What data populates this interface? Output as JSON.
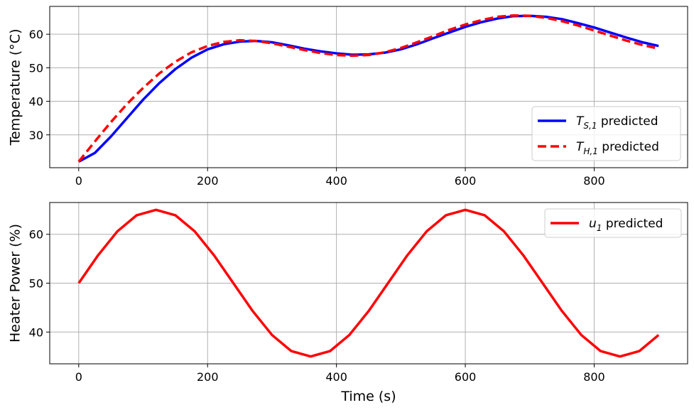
{
  "chart_data": [
    {
      "type": "line",
      "title": "",
      "xlabel": "",
      "ylabel": "Temperature (°C)",
      "xlim": [
        -45,
        945
      ],
      "ylim": [
        20.2,
        68.3
      ],
      "xticks": [
        0,
        200,
        400,
        600,
        800
      ],
      "xtick_labels": [
        "0",
        "200",
        "400",
        "600",
        "800"
      ],
      "yticks": [
        30,
        40,
        50,
        60
      ],
      "ytick_labels": [
        "30",
        "40",
        "50",
        "60"
      ],
      "grid": true,
      "legend_position": "lower right",
      "series": [
        {
          "name": "T_S,1 predicted",
          "legend_main": "T",
          "legend_sub": "S,1",
          "legend_suffix": " predicted",
          "color": "#0000ff",
          "dash": "solid",
          "x": [
            0,
            25,
            50,
            75,
            100,
            125,
            150,
            175,
            200,
            225,
            250,
            275,
            300,
            325,
            350,
            375,
            400,
            425,
            450,
            475,
            500,
            525,
            550,
            575,
            600,
            625,
            650,
            675,
            700,
            725,
            750,
            775,
            800,
            825,
            850,
            875,
            900
          ],
          "y": [
            22.0,
            24.6,
            29.5,
            35.0,
            40.5,
            45.4,
            49.6,
            53.0,
            55.5,
            57.0,
            57.8,
            58.0,
            57.6,
            56.7,
            55.7,
            54.9,
            54.3,
            53.9,
            54.0,
            54.5,
            55.5,
            57.0,
            58.8,
            60.5,
            62.2,
            63.6,
            64.7,
            65.4,
            65.5,
            65.2,
            64.5,
            63.3,
            62.0,
            60.5,
            59.0,
            57.6,
            56.5
          ]
        },
        {
          "name": "T_H,1 predicted",
          "legend_main": "T",
          "legend_sub": "H,1",
          "legend_suffix": " predicted",
          "color": "#ff0000",
          "dash": "dashed",
          "x": [
            0,
            25,
            50,
            75,
            100,
            125,
            150,
            175,
            200,
            225,
            250,
            275,
            300,
            325,
            350,
            375,
            400,
            425,
            450,
            475,
            500,
            525,
            550,
            575,
            600,
            625,
            650,
            675,
            700,
            725,
            750,
            775,
            800,
            825,
            850,
            875,
            900
          ],
          "y": [
            22.0,
            28.0,
            33.8,
            39.2,
            44.0,
            48.3,
            51.8,
            54.6,
            56.5,
            57.7,
            58.2,
            58.0,
            57.3,
            56.3,
            55.3,
            54.4,
            53.8,
            53.6,
            53.8,
            54.6,
            55.9,
            57.6,
            59.4,
            61.3,
            62.9,
            64.2,
            65.2,
            65.6,
            65.5,
            64.9,
            63.9,
            62.6,
            61.1,
            59.6,
            58.1,
            56.8,
            55.7
          ]
        }
      ]
    },
    {
      "type": "line",
      "title": "",
      "xlabel": "Time (s)",
      "ylabel": "Heater Power (%)",
      "xlim": [
        -45,
        945
      ],
      "ylim": [
        33.5,
        66.5
      ],
      "xticks": [
        0,
        200,
        400,
        600,
        800
      ],
      "xtick_labels": [
        "0",
        "200",
        "400",
        "600",
        "800"
      ],
      "yticks": [
        40,
        50,
        60
      ],
      "ytick_labels": [
        "40",
        "50",
        "60"
      ],
      "grid": true,
      "legend_position": "upper right",
      "series": [
        {
          "name": "u_1 predicted",
          "legend_main": "u",
          "legend_sub": "1",
          "legend_suffix": " predicted",
          "color": "#ff0000",
          "dash": "solid",
          "x": [
            0,
            30,
            60,
            90,
            120,
            150,
            180,
            210,
            240,
            270,
            300,
            330,
            360,
            390,
            420,
            450,
            480,
            510,
            540,
            570,
            600,
            630,
            660,
            690,
            720,
            750,
            780,
            810,
            840,
            870,
            900
          ],
          "y": [
            50.0,
            55.7,
            60.6,
            63.9,
            65.0,
            63.9,
            60.6,
            55.7,
            50.0,
            44.3,
            39.4,
            36.1,
            35.0,
            36.1,
            39.4,
            44.3,
            50.0,
            55.7,
            60.6,
            63.9,
            65.0,
            63.9,
            60.6,
            55.7,
            50.0,
            44.3,
            39.4,
            36.1,
            35.0,
            36.1,
            39.4
          ]
        }
      ]
    }
  ]
}
